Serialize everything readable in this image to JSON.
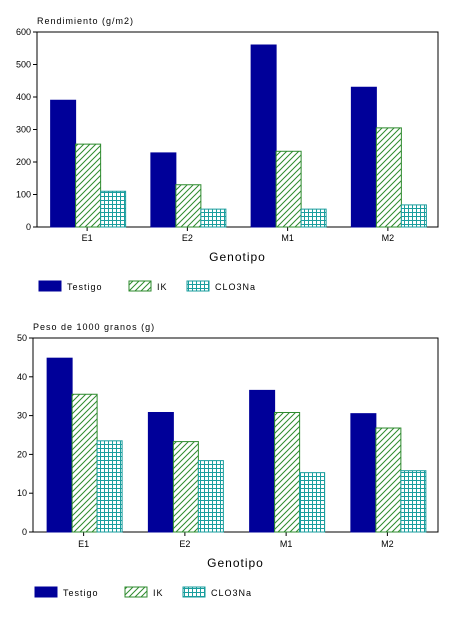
{
  "colors": {
    "testigo_fill": "#000099",
    "ik_stroke": "#2e8b2e",
    "clo3na_stroke": "#1a9e9e",
    "axis": "#000000",
    "background": "#ffffff"
  },
  "chart_data": [
    {
      "type": "bar",
      "title": "Rendimiento (g/m2)",
      "xlabel": "Genotipo",
      "ylabel": "",
      "ylim": [
        0,
        600
      ],
      "yticks": [
        0,
        100,
        200,
        300,
        400,
        500,
        600
      ],
      "grid": false,
      "legend_position": "bottom",
      "categories": [
        "E1",
        "E2",
        "M1",
        "M2"
      ],
      "series": [
        {
          "name": "Testigo",
          "pattern": "solid",
          "values": [
            390,
            228,
            560,
            430
          ]
        },
        {
          "name": "IK",
          "pattern": "diagonal-hatch",
          "values": [
            255,
            130,
            233,
            305
          ]
        },
        {
          "name": "CLO3Na",
          "pattern": "grid-hatch",
          "values": [
            110,
            55,
            55,
            68
          ]
        }
      ]
    },
    {
      "type": "bar",
      "title": "Peso de 1000 granos (g)",
      "xlabel": "Genotipo",
      "ylabel": "",
      "ylim": [
        0,
        50
      ],
      "yticks": [
        0,
        10,
        20,
        30,
        40,
        50
      ],
      "grid": false,
      "legend_position": "bottom",
      "categories": [
        "E1",
        "E2",
        "M1",
        "M2"
      ],
      "series": [
        {
          "name": "Testigo",
          "pattern": "solid",
          "values": [
            44.8,
            30.8,
            36.5,
            30.5
          ]
        },
        {
          "name": "IK",
          "pattern": "diagonal-hatch",
          "values": [
            35.5,
            23.3,
            30.8,
            26.8
          ]
        },
        {
          "name": "CLO3Na",
          "pattern": "grid-hatch",
          "values": [
            23.5,
            18.4,
            15.3,
            15.8
          ]
        }
      ]
    }
  ]
}
